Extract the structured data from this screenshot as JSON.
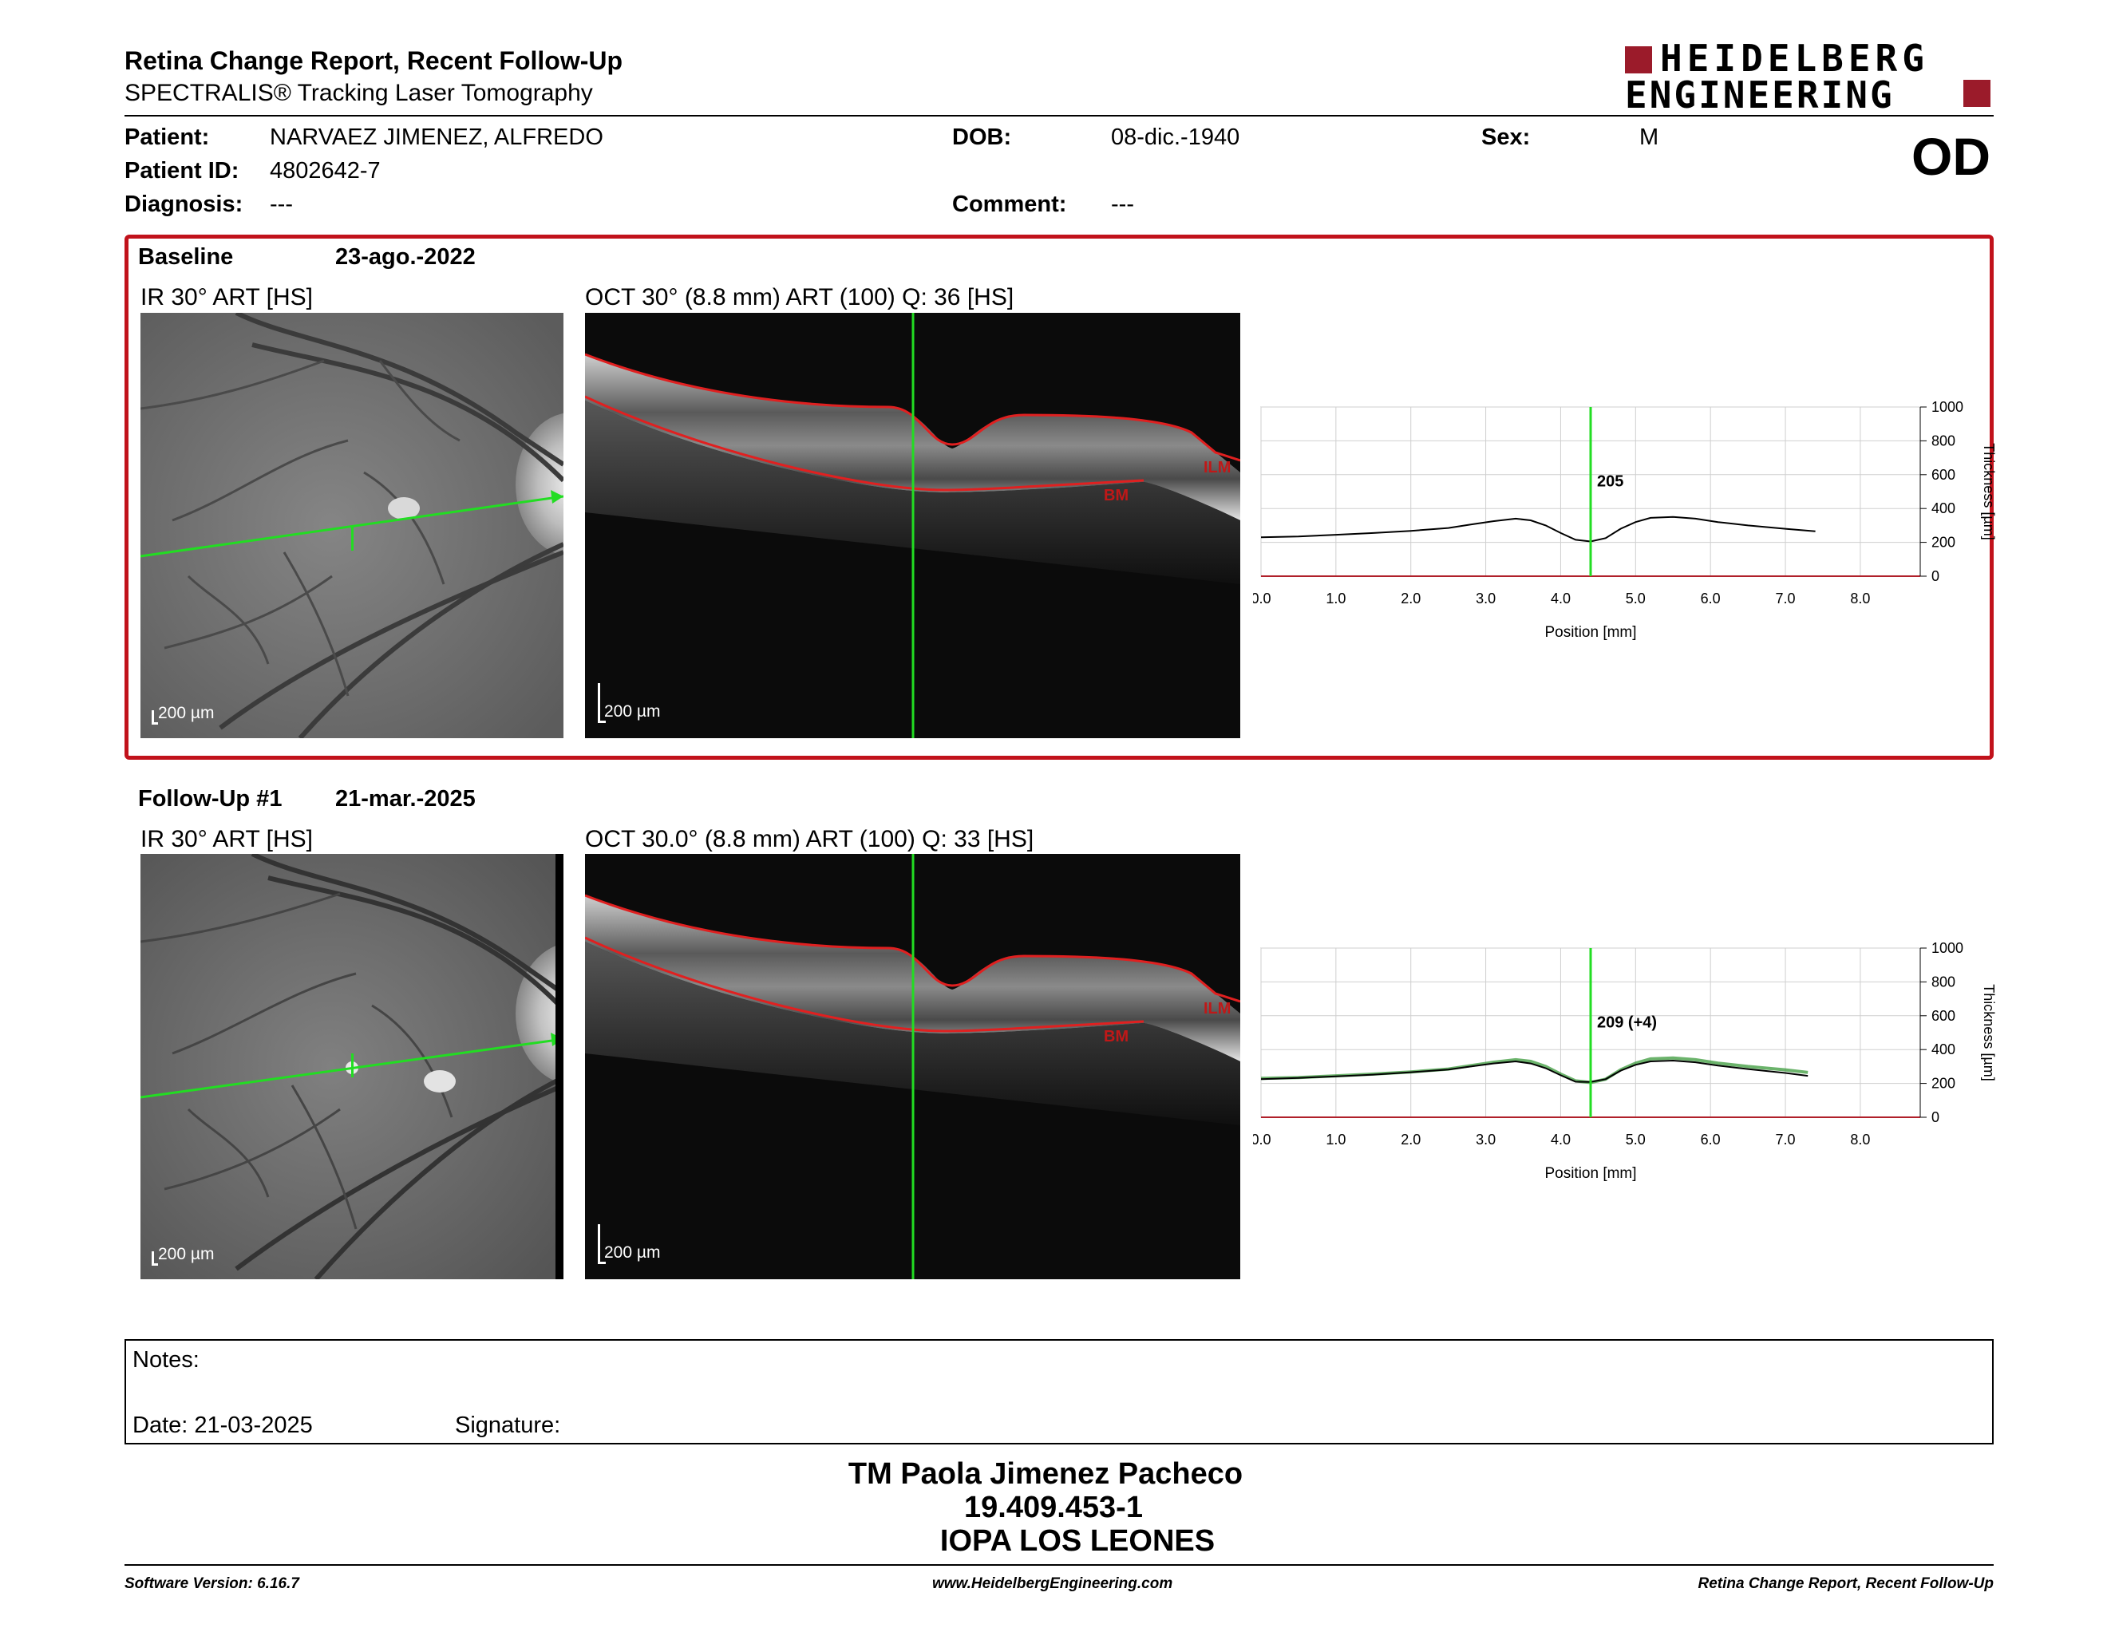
{
  "header": {
    "title": "Retina Change Report, Recent Follow-Up",
    "subtitle": "SPECTRALIS® Tracking Laser Tomography",
    "logo_line1": "HEIDELBERG",
    "logo_line2": "ENGINEERING",
    "eye": "OD"
  },
  "patient": {
    "patient_label": "Patient:",
    "patient_name": "NARVAEZ JIMENEZ, ALFREDO",
    "id_label": "Patient ID:",
    "id": "4802642-7",
    "diagnosis_label": "Diagnosis:",
    "diagnosis": "---",
    "dob_label": "DOB:",
    "dob": "08-dic.-1940",
    "comment_label": "Comment:",
    "comment": "---",
    "sex_label": "Sex:",
    "sex": "M"
  },
  "baseline": {
    "label": "Baseline",
    "date": "23-ago.-2022",
    "ir_label": "IR 30° ART [HS]",
    "oct_label": "OCT 30° (8.8 mm) ART (100) Q: 36 [HS]",
    "scale": "200 µm",
    "ilm": "ILM",
    "bm": "BM"
  },
  "followup": {
    "label": "Follow-Up #1",
    "date": "21-mar.-2025",
    "ir_label": "IR 30° ART [HS]",
    "oct_label": "OCT 30.0° (8.8 mm) ART (100) Q: 33 [HS]",
    "scale": "200 µm",
    "ilm": "ILM",
    "bm": "BM"
  },
  "chart_data": [
    {
      "type": "line",
      "xlabel": "Position [mm]",
      "ylabel": "Thickness [µm]",
      "xlim": [
        0,
        8.8
      ],
      "ylim": [
        0,
        1000
      ],
      "xticks": [
        "0.0",
        "1.0",
        "2.0",
        "3.0",
        "4.0",
        "5.0",
        "6.0",
        "7.0",
        "8.0"
      ],
      "yticks": [
        "0",
        "200",
        "400",
        "600",
        "800",
        "1000"
      ],
      "cursor_x": 4.4,
      "cursor_label": "205",
      "series": [
        {
          "color": "#000000",
          "x": [
            0.0,
            0.5,
            1.0,
            1.5,
            2.0,
            2.5,
            2.8,
            3.1,
            3.4,
            3.6,
            3.8,
            4.0,
            4.2,
            4.4,
            4.6,
            4.8,
            5.0,
            5.2,
            5.5,
            5.8,
            6.1,
            6.5,
            7.0,
            7.4
          ],
          "y": [
            230,
            235,
            245,
            255,
            268,
            285,
            305,
            325,
            340,
            330,
            300,
            255,
            215,
            205,
            225,
            280,
            320,
            345,
            350,
            340,
            320,
            300,
            280,
            265
          ]
        }
      ]
    },
    {
      "type": "line",
      "xlabel": "Position [mm]",
      "ylabel": "Thickness [µm]",
      "xlim": [
        0,
        8.8
      ],
      "ylim": [
        0,
        1000
      ],
      "xticks": [
        "0.0",
        "1.0",
        "2.0",
        "3.0",
        "4.0",
        "5.0",
        "6.0",
        "7.0",
        "8.0"
      ],
      "yticks": [
        "0",
        "200",
        "400",
        "600",
        "800",
        "1000"
      ],
      "cursor_x": 4.4,
      "cursor_label": "209 (+4)",
      "series": [
        {
          "color": "#000000",
          "x": [
            0.0,
            0.5,
            1.0,
            1.5,
            2.0,
            2.5,
            2.8,
            3.1,
            3.4,
            3.6,
            3.8,
            4.0,
            4.2,
            4.4,
            4.6,
            4.8,
            5.0,
            5.2,
            5.5,
            5.8,
            6.1,
            6.5,
            7.0,
            7.3
          ],
          "y": [
            225,
            232,
            242,
            252,
            266,
            282,
            300,
            318,
            330,
            318,
            290,
            248,
            210,
            209,
            225,
            275,
            310,
            330,
            335,
            325,
            305,
            285,
            262,
            245
          ]
        },
        {
          "color": "#3a9a3a",
          "x": [
            0.0,
            0.5,
            1.0,
            1.5,
            2.0,
            2.5,
            2.8,
            3.1,
            3.4,
            3.6,
            3.8,
            4.0,
            4.2,
            4.4,
            4.6,
            4.8,
            5.0,
            5.2,
            5.5,
            5.8,
            6.1,
            6.5,
            7.0,
            7.3
          ],
          "y": [
            230,
            235,
            245,
            255,
            268,
            285,
            305,
            325,
            340,
            330,
            300,
            255,
            215,
            205,
            225,
            280,
            320,
            345,
            350,
            340,
            320,
            300,
            280,
            265
          ]
        }
      ]
    }
  ],
  "notes": {
    "label": "Notes:",
    "date_label": "Date: 21-03-2025",
    "signature_label": "Signature:"
  },
  "signature_block": {
    "name": "TM Paola Jimenez Pacheco",
    "rut": "19.409.453-1",
    "institution": "IOPA LOS LEONES"
  },
  "footer": {
    "version": "Software Version: 6.16.7",
    "url": "www.HeidelbergEngineering.com",
    "report": "Retina Change Report, Recent Follow-Up"
  },
  "colors": {
    "brand_red": "#9b1b2a",
    "frame_red": "#c1121b",
    "cursor_green": "#22dd22"
  }
}
